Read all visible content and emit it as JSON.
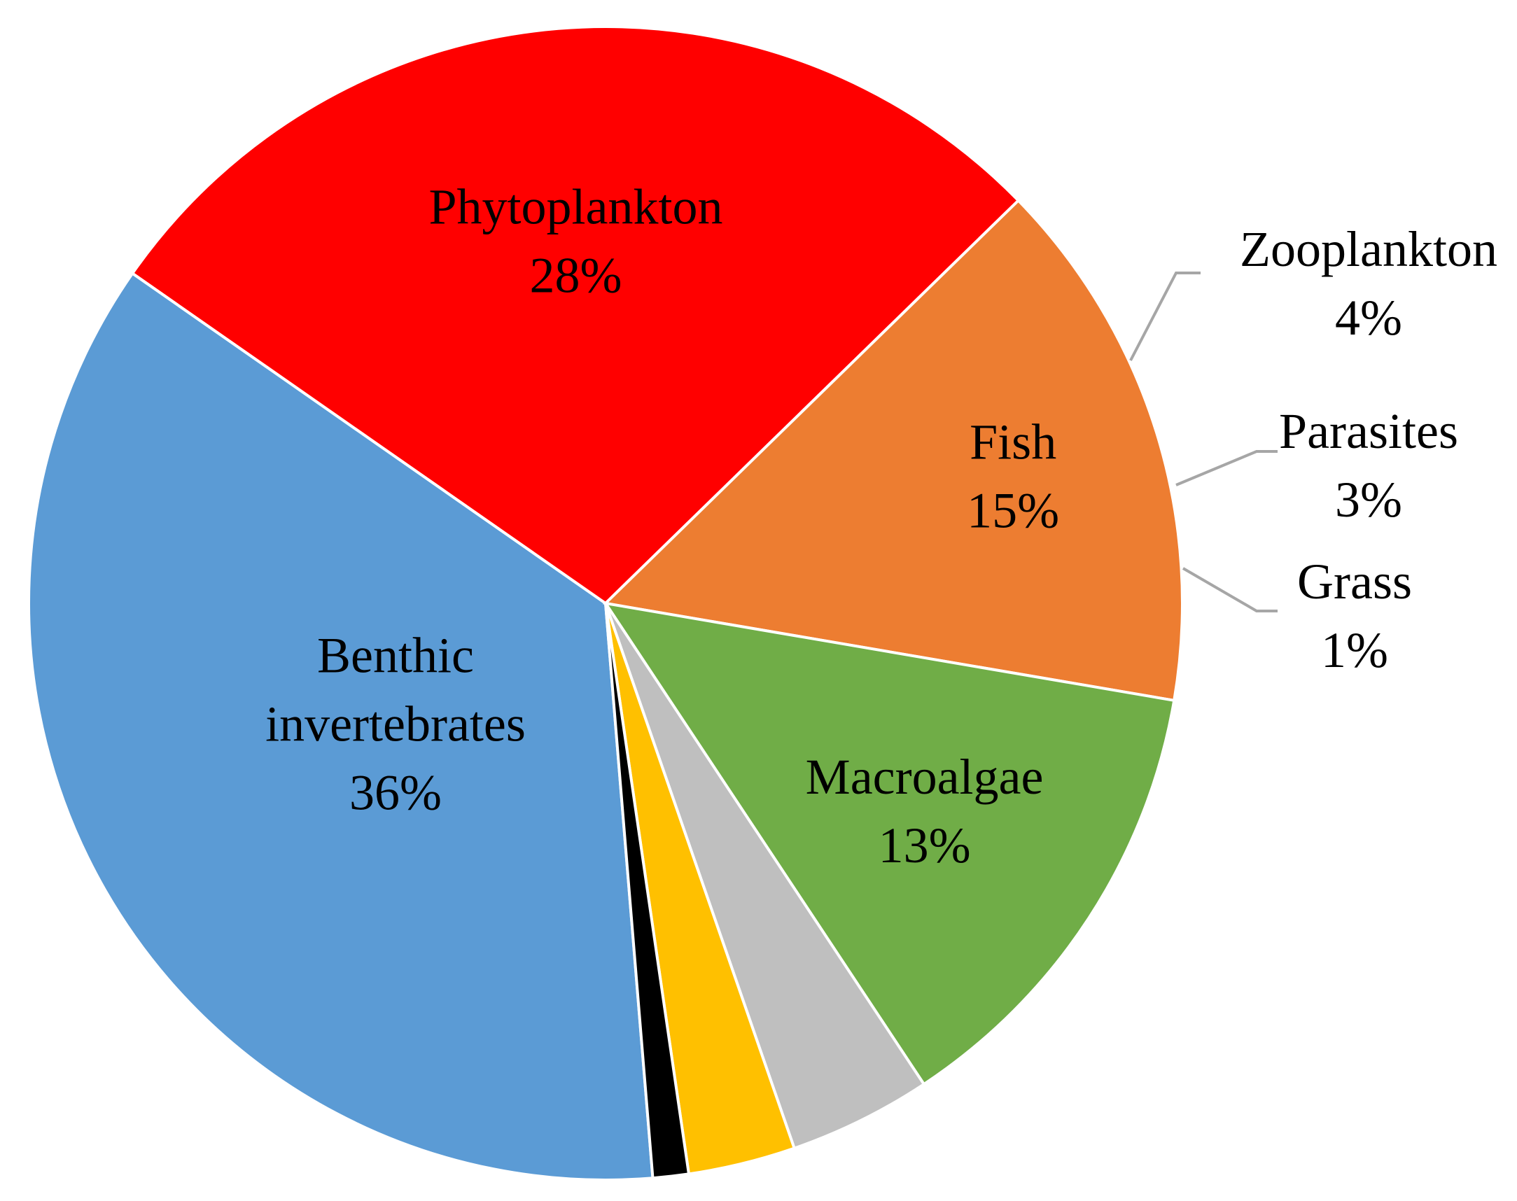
{
  "chart_data": {
    "type": "pie",
    "title": "",
    "slices": [
      {
        "label": "Benthic invertebrates",
        "lines": [
          "Benthic",
          "invertebrates"
        ],
        "value": 36,
        "value_label": "36%",
        "color": "#5b9bd5"
      },
      {
        "label": "Phytoplankton",
        "lines": [
          "Phytoplankton"
        ],
        "value": 28,
        "value_label": "28%",
        "color": "#ff0000"
      },
      {
        "label": "Fish",
        "lines": [
          "Fish"
        ],
        "value": 15,
        "value_label": "15%",
        "color": "#ed7d31"
      },
      {
        "label": "Macroalgae",
        "lines": [
          "Macroalgae"
        ],
        "value": 13,
        "value_label": "13%",
        "color": "#70ad47"
      },
      {
        "label": "Zooplankton",
        "lines": [
          "Zooplankton"
        ],
        "value": 4,
        "value_label": "4%",
        "color": "#bfbfbf"
      },
      {
        "label": "Parasites",
        "lines": [
          "Parasites"
        ],
        "value": 3,
        "value_label": "3%",
        "color": "#ffc000"
      },
      {
        "label": "Grass",
        "lines": [
          "Grass"
        ],
        "value": 1,
        "value_label": "1%",
        "color": "#000000"
      }
    ],
    "legend": "none",
    "data_labels": "category name and percentage"
  }
}
